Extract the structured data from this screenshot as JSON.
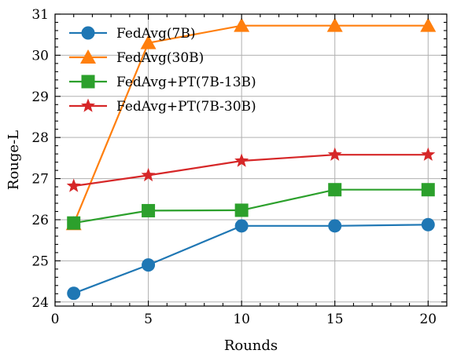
{
  "chart_data": {
    "type": "line",
    "xlabel": "Rounds",
    "ylabel": "Rouge-L",
    "xlim": [
      0,
      21
    ],
    "ylim": [
      23.9,
      31.0
    ],
    "xticks": [
      0,
      5,
      10,
      15,
      20
    ],
    "yticks": [
      24,
      25,
      26,
      27,
      28,
      29,
      30,
      31
    ],
    "grid": true,
    "legend_position": "top-left",
    "x": [
      1,
      5,
      10,
      15,
      20
    ],
    "series": [
      {
        "name": "FedAvg(7B)",
        "marker": "circle",
        "color": "#1f77b4",
        "values": [
          24.21,
          24.9,
          25.85,
          25.85,
          25.88
        ]
      },
      {
        "name": "FedAvg(30B)",
        "marker": "triangle",
        "color": "#ff7f0e",
        "values": [
          25.9,
          30.3,
          30.72,
          30.72,
          30.72
        ]
      },
      {
        "name": "FedAvg+PT(7B-13B)",
        "marker": "square",
        "color": "#2ca02c",
        "values": [
          25.92,
          26.22,
          26.23,
          26.73,
          26.73
        ]
      },
      {
        "name": "FedAvg+PT(7B-30B)",
        "marker": "star",
        "color": "#d62728",
        "values": [
          26.82,
          27.08,
          27.43,
          27.58,
          27.58
        ]
      }
    ]
  }
}
